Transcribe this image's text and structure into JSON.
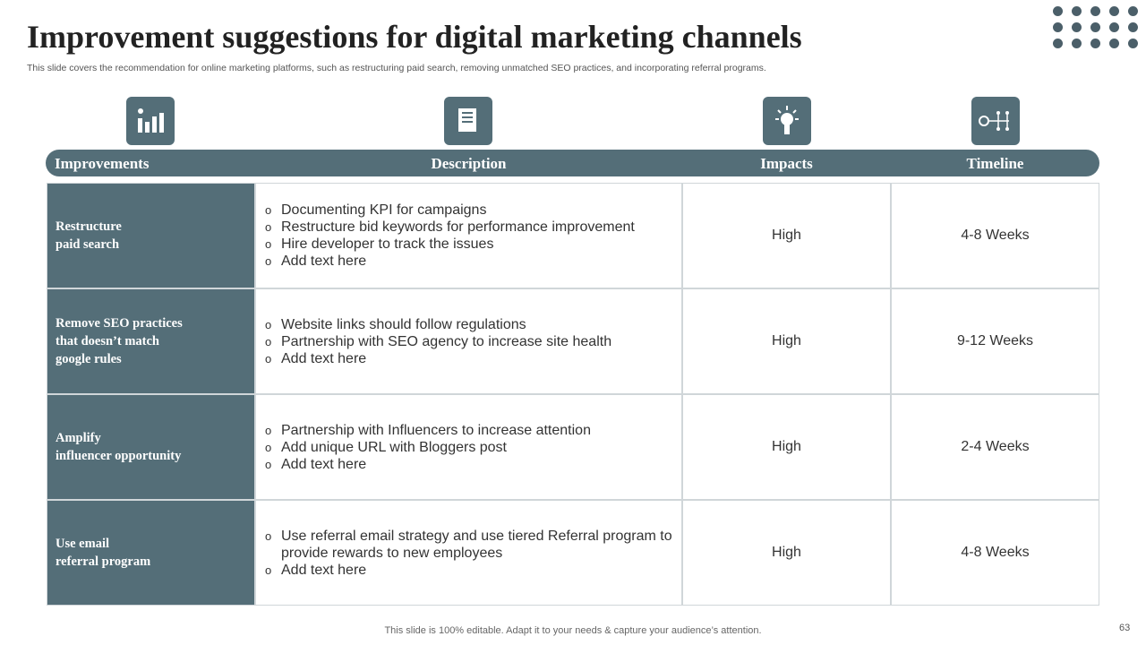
{
  "header": {
    "title": "Improvement suggestions for digital marketing channels",
    "subtitle": "This slide covers the recommendation for online marketing platforms, such as restructuring paid search, removing unmatched SEO practices, and incorporating referral programs."
  },
  "table": {
    "columns": [
      "Improvements",
      "Description",
      "Impacts",
      "Timeline"
    ],
    "rows": [
      {
        "improvement": [
          "Restructure",
          "paid search"
        ],
        "description": [
          "Documenting KPI for campaigns",
          "Restructure  bid keywords for performance improvement",
          "Hire developer to track the issues",
          "Add text here"
        ],
        "impact": "High",
        "timeline": "4-8 Weeks"
      },
      {
        "improvement": [
          "Remove SEO practices",
          "that doesn’t match",
          "google rules"
        ],
        "description": [
          "Website links should follow regulations",
          "Partnership with SEO agency to increase site health",
          "Add text here"
        ],
        "impact": "High",
        "timeline": "9-12 Weeks"
      },
      {
        "improvement": [
          "Amplify",
          "influencer  opportunity"
        ],
        "description": [
          "Partnership with Influencers  to increase attention",
          "Add unique URL with Bloggers post",
          "Add text here"
        ],
        "impact": "High",
        "timeline": "2-4 Weeks"
      },
      {
        "improvement": [
          "Use email",
          "referral program"
        ],
        "description": [
          "Use referral email strategy and use tiered Referral program to provide rewards to new employees",
          "Add text here"
        ],
        "impact": "High",
        "timeline": "4-8 Weeks"
      }
    ]
  },
  "footer": {
    "note": "This slide is 100% editable. Adapt it to your needs & capture your audience’s attention.",
    "page": "63"
  }
}
